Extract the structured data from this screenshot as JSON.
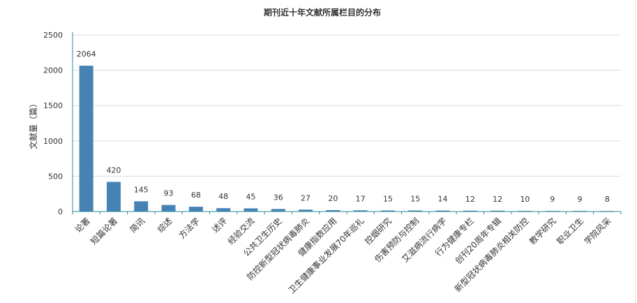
{
  "chart_data": {
    "type": "bar",
    "title": "期刊近十年文献所属栏目的分布",
    "xlabel": "",
    "ylabel": "文献量（篇）",
    "ylim": [
      0,
      2500
    ],
    "yticks": [
      0,
      500,
      1000,
      1500,
      2000,
      2500
    ],
    "grid": true,
    "legend": "none",
    "bar_color": "#4682b4",
    "axis_color": "#2e8b9a",
    "categories": [
      "论著",
      "短篇论著",
      "简讯",
      "综述",
      "方法学",
      "述评",
      "经验交流",
      "公共卫生历史",
      "防控新型冠状病毒肺炎",
      "健康指数应用",
      "卫生健康事业发展70年巡礼",
      "控烟研究",
      "伤害预防与控制",
      "艾滋病流行病学",
      "行为健康专栏",
      "创刊20周年专辑",
      "新型冠状病毒肺炎相关防控",
      "教学研究",
      "职业卫生",
      "学院风采"
    ],
    "values": [
      2064,
      420,
      145,
      93,
      68,
      48,
      45,
      36,
      27,
      20,
      17,
      15,
      15,
      14,
      12,
      12,
      10,
      9,
      9,
      8
    ]
  }
}
